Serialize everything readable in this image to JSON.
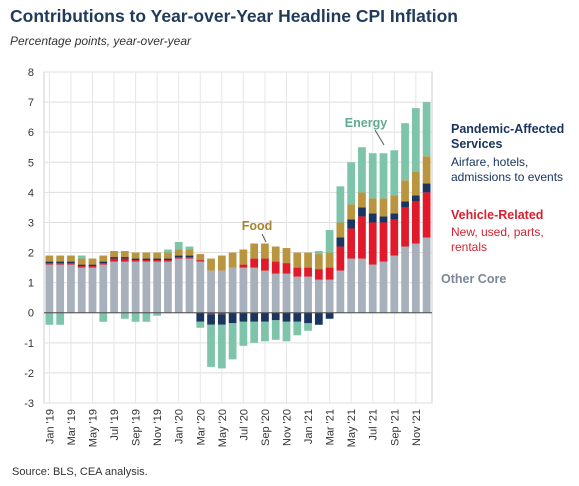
{
  "title": "Contributions to Year-over-Year Headline CPI Inflation",
  "subtitle": "Percentage points, year-over-year",
  "source": "Source: BLS, CEA analysis.",
  "chart_data": {
    "type": "bar",
    "stacked": true,
    "ylim": [
      -3,
      8
    ],
    "yticks": [
      -3,
      -2,
      -1,
      0,
      1,
      2,
      3,
      4,
      5,
      6,
      7,
      8
    ],
    "grid": true,
    "categories": [
      "Jan '19",
      "Feb '19",
      "Mar '19",
      "Apr '19",
      "May '19",
      "Jun '19",
      "Jul '19",
      "Aug '19",
      "Sep '19",
      "Oct '19",
      "Nov '19",
      "Dec '19",
      "Jan '20",
      "Feb '20",
      "Mar '20",
      "Apr '20",
      "May '20",
      "Jun '20",
      "Jul '20",
      "Aug '20",
      "Sep '20",
      "Oct '20",
      "Nov '20",
      "Dec '20",
      "Jan '21",
      "Feb '21",
      "Mar '21",
      "Apr '21",
      "May '21",
      "Jun '21",
      "Jul '21",
      "Aug '21",
      "Sep '21",
      "Oct '21",
      "Nov '21",
      "Dec '21"
    ],
    "x_tick_labels": [
      "Jan '19",
      "Mar '19",
      "May '19",
      "Jul '19",
      "Sep '19",
      "Nov '19",
      "Jan '20",
      "Mar '20",
      "May '20",
      "Jul '20",
      "Sep '20",
      "Nov '20",
      "Jan '21",
      "Mar '21",
      "May '21",
      "Jul '21",
      "Sep '21",
      "Nov '21"
    ],
    "series": [
      {
        "name": "Other Core",
        "color": "#a7b0bb",
        "values": [
          1.6,
          1.6,
          1.6,
          1.5,
          1.5,
          1.6,
          1.7,
          1.7,
          1.7,
          1.7,
          1.7,
          1.7,
          1.8,
          1.8,
          1.7,
          1.4,
          1.4,
          1.5,
          1.5,
          1.5,
          1.4,
          1.3,
          1.3,
          1.2,
          1.2,
          1.1,
          1.1,
          1.4,
          1.8,
          1.8,
          1.6,
          1.7,
          1.9,
          2.2,
          2.3,
          2.5
        ]
      },
      {
        "name": "Vehicle-Related",
        "color": "#e0192b",
        "values": [
          0.05,
          0.05,
          0.05,
          0.05,
          0.05,
          0.05,
          0.1,
          0.1,
          0.05,
          0.05,
          0.05,
          0.05,
          0.05,
          0.05,
          0.05,
          -0.05,
          -0.05,
          0.0,
          0.1,
          0.3,
          0.4,
          0.4,
          0.35,
          0.3,
          0.3,
          0.35,
          0.4,
          0.8,
          1.0,
          1.4,
          1.4,
          1.3,
          1.2,
          1.3,
          1.4,
          1.5
        ]
      },
      {
        "name": "Pandemic-Affected Services",
        "color": "#1b3560",
        "values": [
          0.05,
          0.05,
          0.05,
          0.05,
          0.05,
          0.05,
          0.05,
          0.05,
          0.05,
          0.05,
          0.05,
          0.05,
          0.05,
          0.05,
          -0.3,
          -0.35,
          -0.35,
          -0.35,
          -0.3,
          -0.3,
          -0.3,
          -0.25,
          -0.3,
          -0.3,
          -0.35,
          -0.4,
          -0.2,
          0.3,
          0.3,
          0.3,
          0.3,
          0.2,
          0.2,
          0.2,
          0.2,
          0.3
        ]
      },
      {
        "name": "Food",
        "color": "#b99540",
        "values": [
          0.2,
          0.2,
          0.2,
          0.2,
          0.2,
          0.2,
          0.2,
          0.2,
          0.2,
          0.2,
          0.2,
          0.2,
          0.2,
          0.2,
          0.2,
          0.4,
          0.5,
          0.5,
          0.5,
          0.5,
          0.5,
          0.5,
          0.5,
          0.5,
          0.5,
          0.5,
          0.5,
          0.5,
          0.5,
          0.5,
          0.5,
          0.6,
          0.6,
          0.7,
          0.8,
          0.9
        ]
      },
      {
        "name": "Energy",
        "color": "#7dc4ab",
        "values": [
          -0.4,
          -0.4,
          0.0,
          0.1,
          0.0,
          -0.3,
          0.0,
          -0.2,
          -0.3,
          -0.3,
          -0.1,
          0.1,
          0.25,
          0.1,
          -0.2,
          -1.4,
          -1.45,
          -1.2,
          -0.8,
          -0.7,
          -0.65,
          -0.65,
          -0.65,
          -0.45,
          -0.25,
          0.1,
          0.75,
          1.2,
          1.4,
          1.5,
          1.5,
          1.5,
          1.5,
          1.9,
          2.1,
          1.8
        ]
      }
    ],
    "annotations": {
      "energy": {
        "title": "Energy",
        "color": "#62ab8f"
      },
      "food": {
        "title": "Food",
        "color": "#a9832e"
      },
      "services": {
        "title_lines": [
          "Pandemic-Affected",
          "Services"
        ],
        "desc_lines": [
          "Airfare, hotels,",
          "admissions to events"
        ],
        "color": "#1b3560"
      },
      "vehicle": {
        "title": "Vehicle-Related",
        "desc_lines": [
          "New, used, parts,",
          "rentals"
        ],
        "color": "#d81f2e"
      },
      "other": {
        "title": "Other Core",
        "color": "#7d8794"
      }
    }
  }
}
